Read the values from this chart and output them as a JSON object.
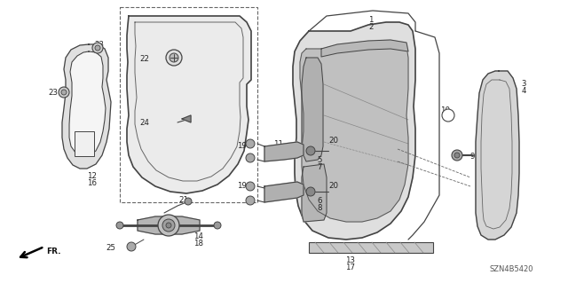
{
  "bg_color": "#ffffff",
  "watermark": "SZN4B5420",
  "line_color": "#444444",
  "fill_light": "#e8e8e8",
  "fill_mid": "#cccccc",
  "fill_dark": "#aaaaaa"
}
